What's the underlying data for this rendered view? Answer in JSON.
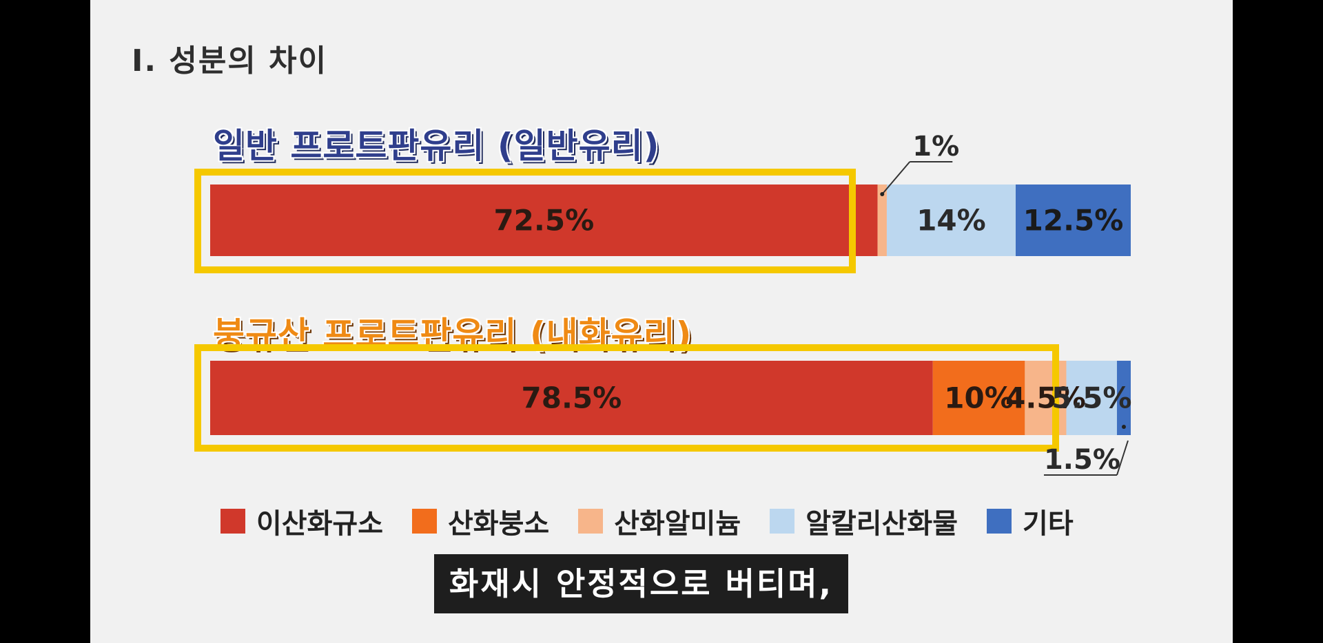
{
  "slide": {
    "title": "Ⅰ. 성분의 차이",
    "subtitle": "화재시 안정적으로 버티며,"
  },
  "colors": {
    "이산화규소": "#d0382b",
    "산화붕소": "#f26d1c",
    "산화알미늄": "#f7b58a",
    "알칼리산화물": "#bcd7ef",
    "기타": "#3f6fc0",
    "highlight": "#f5c800"
  },
  "chart_data": {
    "type": "bar",
    "orientation": "horizontal-stacked-100",
    "series_names": [
      "이산화규소",
      "산화붕소",
      "산화알미늄",
      "알칼리산화물",
      "기타"
    ],
    "legend": [
      "이산화규소",
      "산화붕소",
      "산화알미늄",
      "알칼리산화물",
      "기타"
    ],
    "legend_placement": "bottom",
    "bars": [
      {
        "category": "일반 프로트판유리 (일반유리)",
        "segments": [
          {
            "series": "이산화규소",
            "value": 72.5,
            "label": "72.5%"
          },
          {
            "series": "산화붕소",
            "value": 0,
            "label": ""
          },
          {
            "series": "산화알미늄",
            "value": 1,
            "label": "1%"
          },
          {
            "series": "알칼리산화물",
            "value": 14,
            "label": "14%"
          },
          {
            "series": "기타",
            "value": 12.5,
            "label": "12.5%"
          }
        ]
      },
      {
        "category": "붕규산 프로트판유리 (내화유리)",
        "segments": [
          {
            "series": "이산화규소",
            "value": 78.5,
            "label": "78.5%"
          },
          {
            "series": "산화붕소",
            "value": 10,
            "label": "10%"
          },
          {
            "series": "산화알미늄",
            "value": 4.5,
            "label": "4.5%"
          },
          {
            "series": "알칼리산화물",
            "value": 5.5,
            "label": "5.5%"
          },
          {
            "series": "기타",
            "value": 1.5,
            "label": "1.5%"
          }
        ]
      }
    ]
  }
}
